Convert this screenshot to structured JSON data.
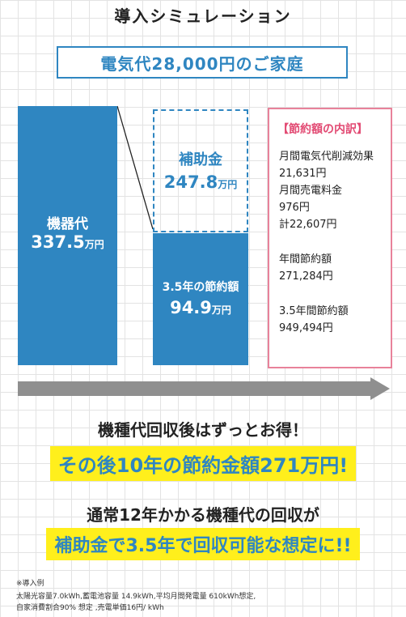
{
  "header": {
    "title": "導入シミュレーション",
    "subtitle": "電気代28,000円のご家庭"
  },
  "chart_data": {
    "type": "bar",
    "unit": "万円",
    "categories": [
      "機器代",
      "補助金 + 3.5年の節約額"
    ],
    "series": [
      {
        "name": "機器代",
        "values": [
          337.5,
          null
        ]
      },
      {
        "name": "3.5年の節約額",
        "values": [
          null,
          94.9
        ]
      },
      {
        "name": "補助金",
        "values": [
          null,
          247.8
        ]
      }
    ],
    "labels": {
      "equipment_label": "機器代",
      "equipment_value": "337.5",
      "subsidy_label": "補助金",
      "subsidy_value": "247.8",
      "savings_label": "3.5年の節約額",
      "savings_value": "94.9",
      "unit": "万円"
    }
  },
  "breakdown": {
    "heading": "【節約額の内訳】",
    "lines": [
      "月間電気代削減効果",
      "21,631円",
      "月間売電料金",
      "976円",
      "計22,607円",
      "年間節約額",
      "271,284円",
      "3.5年間節約額",
      "949,494円"
    ]
  },
  "colors": {
    "accent": "#2f86c1",
    "pink": "#e8829a",
    "highlight": "#ffef1c",
    "arrow": "#8f8f8f"
  },
  "messages": {
    "line1": "機種代回収後はずっとお得！",
    "line2": "その後10年の節約金額271万円!",
    "line3": "通常12年かかる機種代の回収が",
    "line4": "補助金で3.5年で回収可能な想定に!!"
  },
  "note": {
    "line1": "※導入例",
    "line2": "太陽光容量7.0kWh,蓄電池容量 14.9kWh,平均月間発電量 610kWh想定,",
    "line3": "自家消費割合90% 想定 ,売電単価16円/ kWh"
  }
}
